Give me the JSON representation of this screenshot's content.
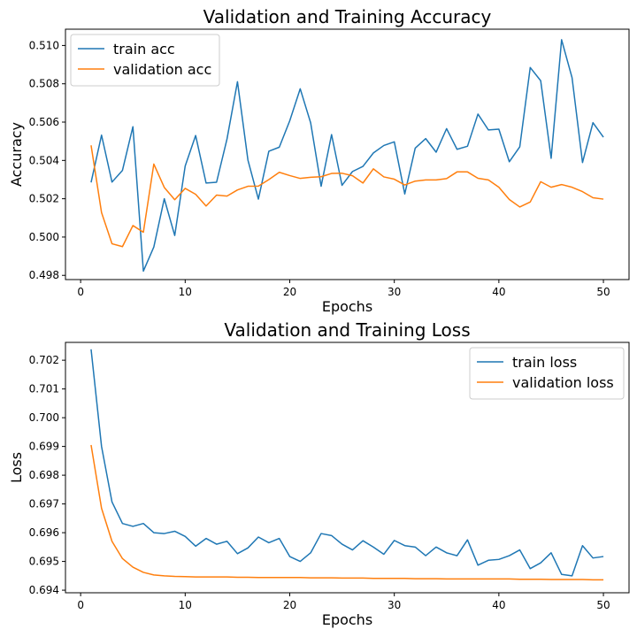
{
  "colors": {
    "train": "#1f77b4",
    "validation": "#ff7f0e"
  },
  "chart_data": [
    {
      "type": "line",
      "title": "Validation and Training Accuracy",
      "xlabel": "Epochs",
      "ylabel": "Accuracy",
      "xlim": [
        -1.45,
        52.45
      ],
      "ylim": [
        0.49778,
        0.51085
      ],
      "xticks": [
        0,
        10,
        20,
        30,
        40,
        50
      ],
      "yticks": [
        0.498,
        0.5,
        0.502,
        0.504,
        0.506,
        0.508,
        0.51
      ],
      "ytick_decimals": 3,
      "grid": false,
      "legend_position": "upper-left",
      "series": [
        {
          "name": "train acc",
          "color": "#1f77b4",
          "x": [
            1,
            2,
            3,
            4,
            5,
            6,
            7,
            8,
            9,
            10,
            11,
            12,
            13,
            14,
            15,
            16,
            17,
            18,
            19,
            20,
            21,
            22,
            23,
            24,
            25,
            26,
            27,
            28,
            29,
            30,
            31,
            32,
            33,
            34,
            35,
            36,
            37,
            38,
            39,
            40,
            41,
            42,
            43,
            44,
            45,
            46,
            47,
            48,
            49,
            50
          ],
          "y": [
            0.50285,
            0.50532,
            0.50287,
            0.50348,
            0.50576,
            0.49822,
            0.49948,
            0.502,
            0.50008,
            0.50371,
            0.5053,
            0.50282,
            0.50286,
            0.50512,
            0.50811,
            0.50402,
            0.50198,
            0.50448,
            0.50469,
            0.50607,
            0.50774,
            0.50596,
            0.50265,
            0.50535,
            0.5027,
            0.50342,
            0.50369,
            0.50439,
            0.50478,
            0.50497,
            0.50225,
            0.50464,
            0.50514,
            0.50443,
            0.50566,
            0.50458,
            0.50474,
            0.50642,
            0.50559,
            0.50563,
            0.50393,
            0.50471,
            0.50885,
            0.50816,
            0.50411,
            0.5103,
            0.50832,
            0.50389,
            0.50597,
            0.50521
          ]
        },
        {
          "name": "validation acc",
          "color": "#ff7f0e",
          "x": [
            1,
            2,
            3,
            4,
            5,
            6,
            7,
            8,
            9,
            10,
            11,
            12,
            13,
            14,
            15,
            16,
            17,
            18,
            19,
            20,
            21,
            22,
            23,
            24,
            25,
            26,
            27,
            28,
            29,
            30,
            31,
            32,
            33,
            34,
            35,
            36,
            37,
            38,
            39,
            40,
            41,
            42,
            43,
            44,
            45,
            46,
            47,
            48,
            49,
            50
          ],
          "y": [
            0.50479,
            0.50128,
            0.49965,
            0.4995,
            0.5006,
            0.50025,
            0.50381,
            0.50259,
            0.50195,
            0.50254,
            0.50223,
            0.50162,
            0.50219,
            0.50214,
            0.50246,
            0.50265,
            0.50266,
            0.503,
            0.50338,
            0.50321,
            0.50306,
            0.50312,
            0.50315,
            0.50332,
            0.50333,
            0.5032,
            0.50282,
            0.50356,
            0.50314,
            0.50302,
            0.50272,
            0.50292,
            0.50298,
            0.50298,
            0.50305,
            0.5034,
            0.5034,
            0.50307,
            0.50298,
            0.5026,
            0.50196,
            0.50157,
            0.50183,
            0.50289,
            0.5026,
            0.50274,
            0.5026,
            0.50237,
            0.50205,
            0.50198
          ]
        }
      ]
    },
    {
      "type": "line",
      "title": "Validation and Training Loss",
      "xlabel": "Epochs",
      "ylabel": "Loss",
      "xlim": [
        -1.45,
        52.45
      ],
      "ylim": [
        0.69391,
        0.70262
      ],
      "xticks": [
        0,
        10,
        20,
        30,
        40,
        50
      ],
      "yticks": [
        0.694,
        0.695,
        0.696,
        0.697,
        0.698,
        0.699,
        0.7,
        0.701,
        0.702
      ],
      "ytick_decimals": 3,
      "grid": false,
      "legend_position": "upper-right",
      "series": [
        {
          "name": "train loss",
          "color": "#1f77b4",
          "x": [
            1,
            2,
            3,
            4,
            5,
            6,
            7,
            8,
            9,
            10,
            11,
            12,
            13,
            14,
            15,
            16,
            17,
            18,
            19,
            20,
            21,
            22,
            23,
            24,
            25,
            26,
            27,
            28,
            29,
            30,
            31,
            32,
            33,
            34,
            35,
            36,
            37,
            38,
            39,
            40,
            41,
            42,
            43,
            44,
            45,
            46,
            47,
            48,
            49,
            50
          ],
          "y": [
            0.70238,
            0.699,
            0.69707,
            0.69632,
            0.69622,
            0.69632,
            0.696,
            0.69597,
            0.69605,
            0.69587,
            0.69553,
            0.6958,
            0.6956,
            0.6957,
            0.69527,
            0.69547,
            0.69585,
            0.69565,
            0.6958,
            0.69517,
            0.695,
            0.6953,
            0.69597,
            0.6959,
            0.6956,
            0.6954,
            0.69572,
            0.6955,
            0.69525,
            0.69573,
            0.69555,
            0.6955,
            0.6952,
            0.6955,
            0.6953,
            0.6952,
            0.69575,
            0.69487,
            0.69504,
            0.69507,
            0.6952,
            0.6954,
            0.69475,
            0.69495,
            0.6953,
            0.69455,
            0.6945,
            0.69555,
            0.69512,
            0.69517
          ]
        },
        {
          "name": "validation loss",
          "color": "#ff7f0e",
          "x": [
            1,
            2,
            3,
            4,
            5,
            6,
            7,
            8,
            9,
            10,
            11,
            12,
            13,
            14,
            15,
            16,
            17,
            18,
            19,
            20,
            21,
            22,
            23,
            24,
            25,
            26,
            27,
            28,
            29,
            30,
            31,
            32,
            33,
            34,
            35,
            36,
            37,
            38,
            39,
            40,
            41,
            42,
            43,
            44,
            45,
            46,
            47,
            48,
            49,
            50
          ],
          "y": [
            0.69905,
            0.69685,
            0.6957,
            0.6951,
            0.6948,
            0.69462,
            0.69453,
            0.6945,
            0.69448,
            0.69447,
            0.69446,
            0.69446,
            0.69446,
            0.69446,
            0.69445,
            0.69445,
            0.69444,
            0.69444,
            0.69444,
            0.69444,
            0.69444,
            0.69443,
            0.69443,
            0.69443,
            0.69442,
            0.69442,
            0.69442,
            0.69441,
            0.69441,
            0.69441,
            0.69441,
            0.6944,
            0.6944,
            0.6944,
            0.69439,
            0.69439,
            0.69439,
            0.69439,
            0.69439,
            0.69439,
            0.69439,
            0.69438,
            0.69438,
            0.69438,
            0.69437,
            0.69437,
            0.69437,
            0.69437,
            0.69436,
            0.69436
          ]
        }
      ]
    }
  ]
}
